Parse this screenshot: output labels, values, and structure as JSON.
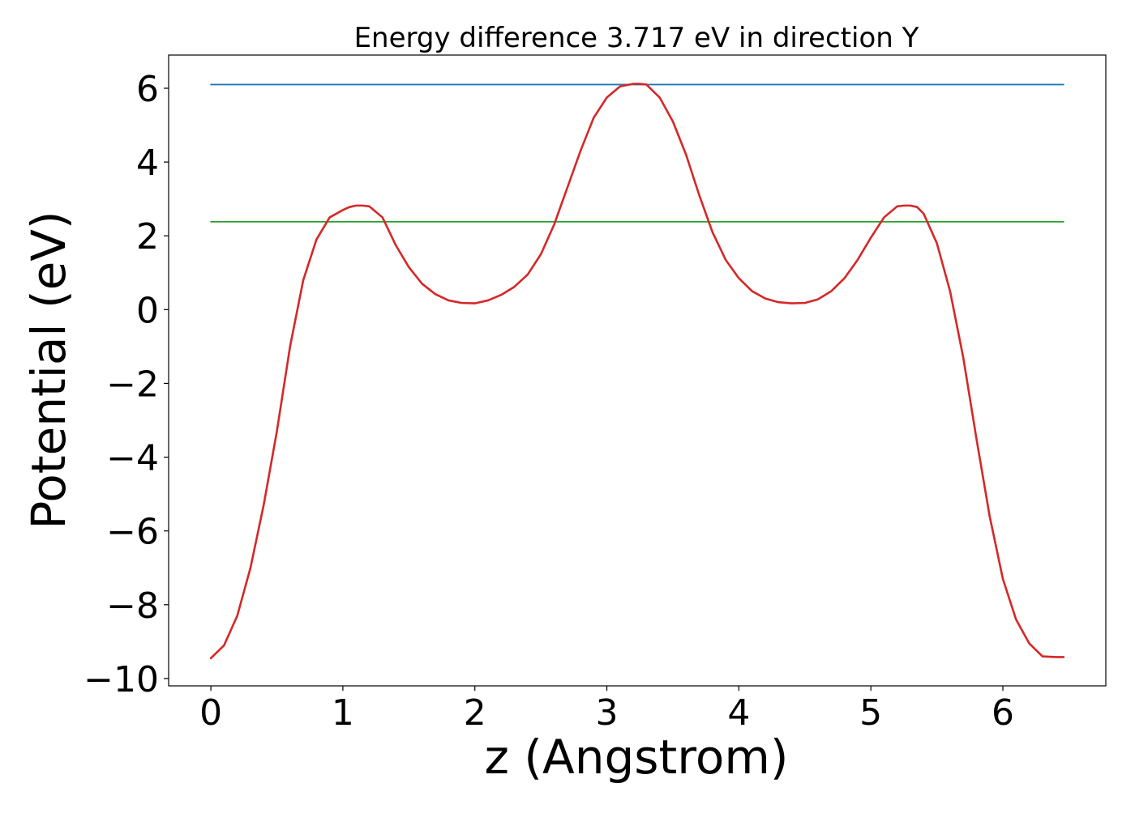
{
  "chart_data": {
    "type": "line",
    "title": "Energy difference 3.717 eV in direction Y",
    "xlabel": "z (Angstrom)",
    "ylabel": "Potential (eV)",
    "xlim": [
      -0.32,
      6.78
    ],
    "ylim": [
      -10.2,
      6.9
    ],
    "xticks": [
      0,
      1,
      2,
      3,
      4,
      5,
      6
    ],
    "yticks": [
      -10,
      -8,
      -6,
      -4,
      -2,
      0,
      2,
      4,
      6
    ],
    "xtick_labels": [
      "0",
      "1",
      "2",
      "3",
      "4",
      "5",
      "6"
    ],
    "ytick_labels": [
      "−10",
      "−8",
      "−6",
      "−4",
      "−2",
      "0",
      "2",
      "4",
      "6"
    ],
    "grid": false,
    "legend": "none",
    "series": [
      {
        "color": "#1f77b4",
        "x": [
          0,
          6.46
        ],
        "y": [
          6.1,
          6.1
        ]
      },
      {
        "color": "#2ca02c",
        "x": [
          0,
          6.46
        ],
        "y": [
          2.38,
          2.38
        ]
      },
      {
        "color": "#d62728",
        "x": [
          0,
          0.1,
          0.2,
          0.3,
          0.4,
          0.5,
          0.6,
          0.7,
          0.8,
          0.9,
          1.0,
          1.05,
          1.1,
          1.15,
          1.2,
          1.3,
          1.4,
          1.5,
          1.6,
          1.7,
          1.8,
          1.9,
          2.0,
          2.1,
          2.2,
          2.3,
          2.4,
          2.5,
          2.6,
          2.7,
          2.8,
          2.9,
          3.0,
          3.1,
          3.2,
          3.25,
          3.3,
          3.4,
          3.5,
          3.6,
          3.7,
          3.8,
          3.9,
          4.0,
          4.1,
          4.2,
          4.3,
          4.4,
          4.5,
          4.6,
          4.7,
          4.8,
          4.9,
          5.0,
          5.1,
          5.2,
          5.25,
          5.3,
          5.35,
          5.4,
          5.5,
          5.6,
          5.7,
          5.8,
          5.9,
          6.0,
          6.1,
          6.2,
          6.3,
          6.4,
          6.46
        ],
        "y": [
          -9.45,
          -9.1,
          -8.3,
          -7.0,
          -5.3,
          -3.3,
          -1.0,
          0.8,
          1.9,
          2.5,
          2.7,
          2.78,
          2.82,
          2.82,
          2.8,
          2.5,
          1.75,
          1.15,
          0.7,
          0.42,
          0.25,
          0.18,
          0.17,
          0.25,
          0.4,
          0.62,
          0.95,
          1.5,
          2.3,
          3.3,
          4.3,
          5.2,
          5.75,
          6.05,
          6.12,
          6.12,
          6.1,
          5.75,
          5.1,
          4.2,
          3.1,
          2.1,
          1.35,
          0.85,
          0.5,
          0.3,
          0.2,
          0.17,
          0.18,
          0.28,
          0.5,
          0.85,
          1.35,
          1.95,
          2.5,
          2.8,
          2.82,
          2.82,
          2.78,
          2.6,
          1.8,
          0.5,
          -1.3,
          -3.5,
          -5.6,
          -7.3,
          -8.4,
          -9.05,
          -9.4,
          -9.42,
          -9.42
        ]
      }
    ]
  }
}
